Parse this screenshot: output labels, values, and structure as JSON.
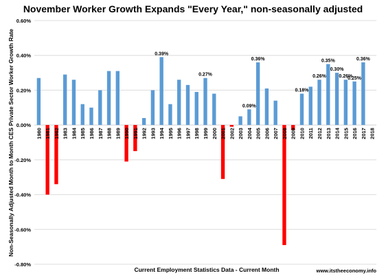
{
  "chart_data": {
    "type": "bar",
    "title": "November  Worker Growth Expands \"Every Year,\" non-seasonally adjusted",
    "xlabel": "Current Employment Statistics Data - Current Month",
    "ylabel": "Non-Seasonally Adjusted Month to Month CES Private Sector Worker Growth Rate",
    "ylim": [
      -0.8,
      0.6
    ],
    "yticks": [
      "-0.80%",
      "-0.60%",
      "-0.40%",
      "-0.20%",
      "0.00%",
      "0.20%",
      "0.40%",
      "0.60%"
    ],
    "categories": [
      "1980",
      "1981",
      "1982",
      "1983",
      "1984",
      "1985",
      "1986",
      "1987",
      "1988",
      "1989",
      "1990",
      "1991",
      "1992",
      "1993",
      "1994",
      "1995",
      "1996",
      "1997",
      "1998",
      "1999",
      "2000",
      "2001",
      "2002",
      "2003",
      "2004",
      "2005",
      "2006",
      "2007",
      "2008",
      "2009",
      "2010",
      "2011",
      "2012",
      "2013",
      "2014",
      "2015",
      "2016",
      "2017",
      "2018"
    ],
    "values": [
      0.27,
      -0.4,
      -0.34,
      0.29,
      0.26,
      0.12,
      0.1,
      0.2,
      0.31,
      0.31,
      -0.21,
      -0.15,
      0.04,
      0.2,
      0.39,
      0.12,
      0.26,
      0.23,
      0.19,
      0.27,
      0.18,
      -0.31,
      -0.01,
      0.05,
      0.09,
      0.36,
      0.21,
      0.14,
      -0.69,
      -0.03,
      0.18,
      0.22,
      0.26,
      0.35,
      0.3,
      0.26,
      0.25,
      0.36,
      null
    ],
    "data_labels": {
      "1994": "0.39%",
      "1999": "0.27%",
      "2004": "0.09%",
      "2005": "0.36%",
      "2010": "0.18%",
      "2012": "0.26%",
      "2013": "0.35%",
      "2014": "0.30%",
      "2015": "0.26%",
      "2016": "0.25%",
      "2017": "0.36%"
    },
    "colors": {
      "positive": "#5b9bd5",
      "negative": "#ff0000"
    },
    "grid": true
  },
  "credit": "www.itstheeconomy.info"
}
